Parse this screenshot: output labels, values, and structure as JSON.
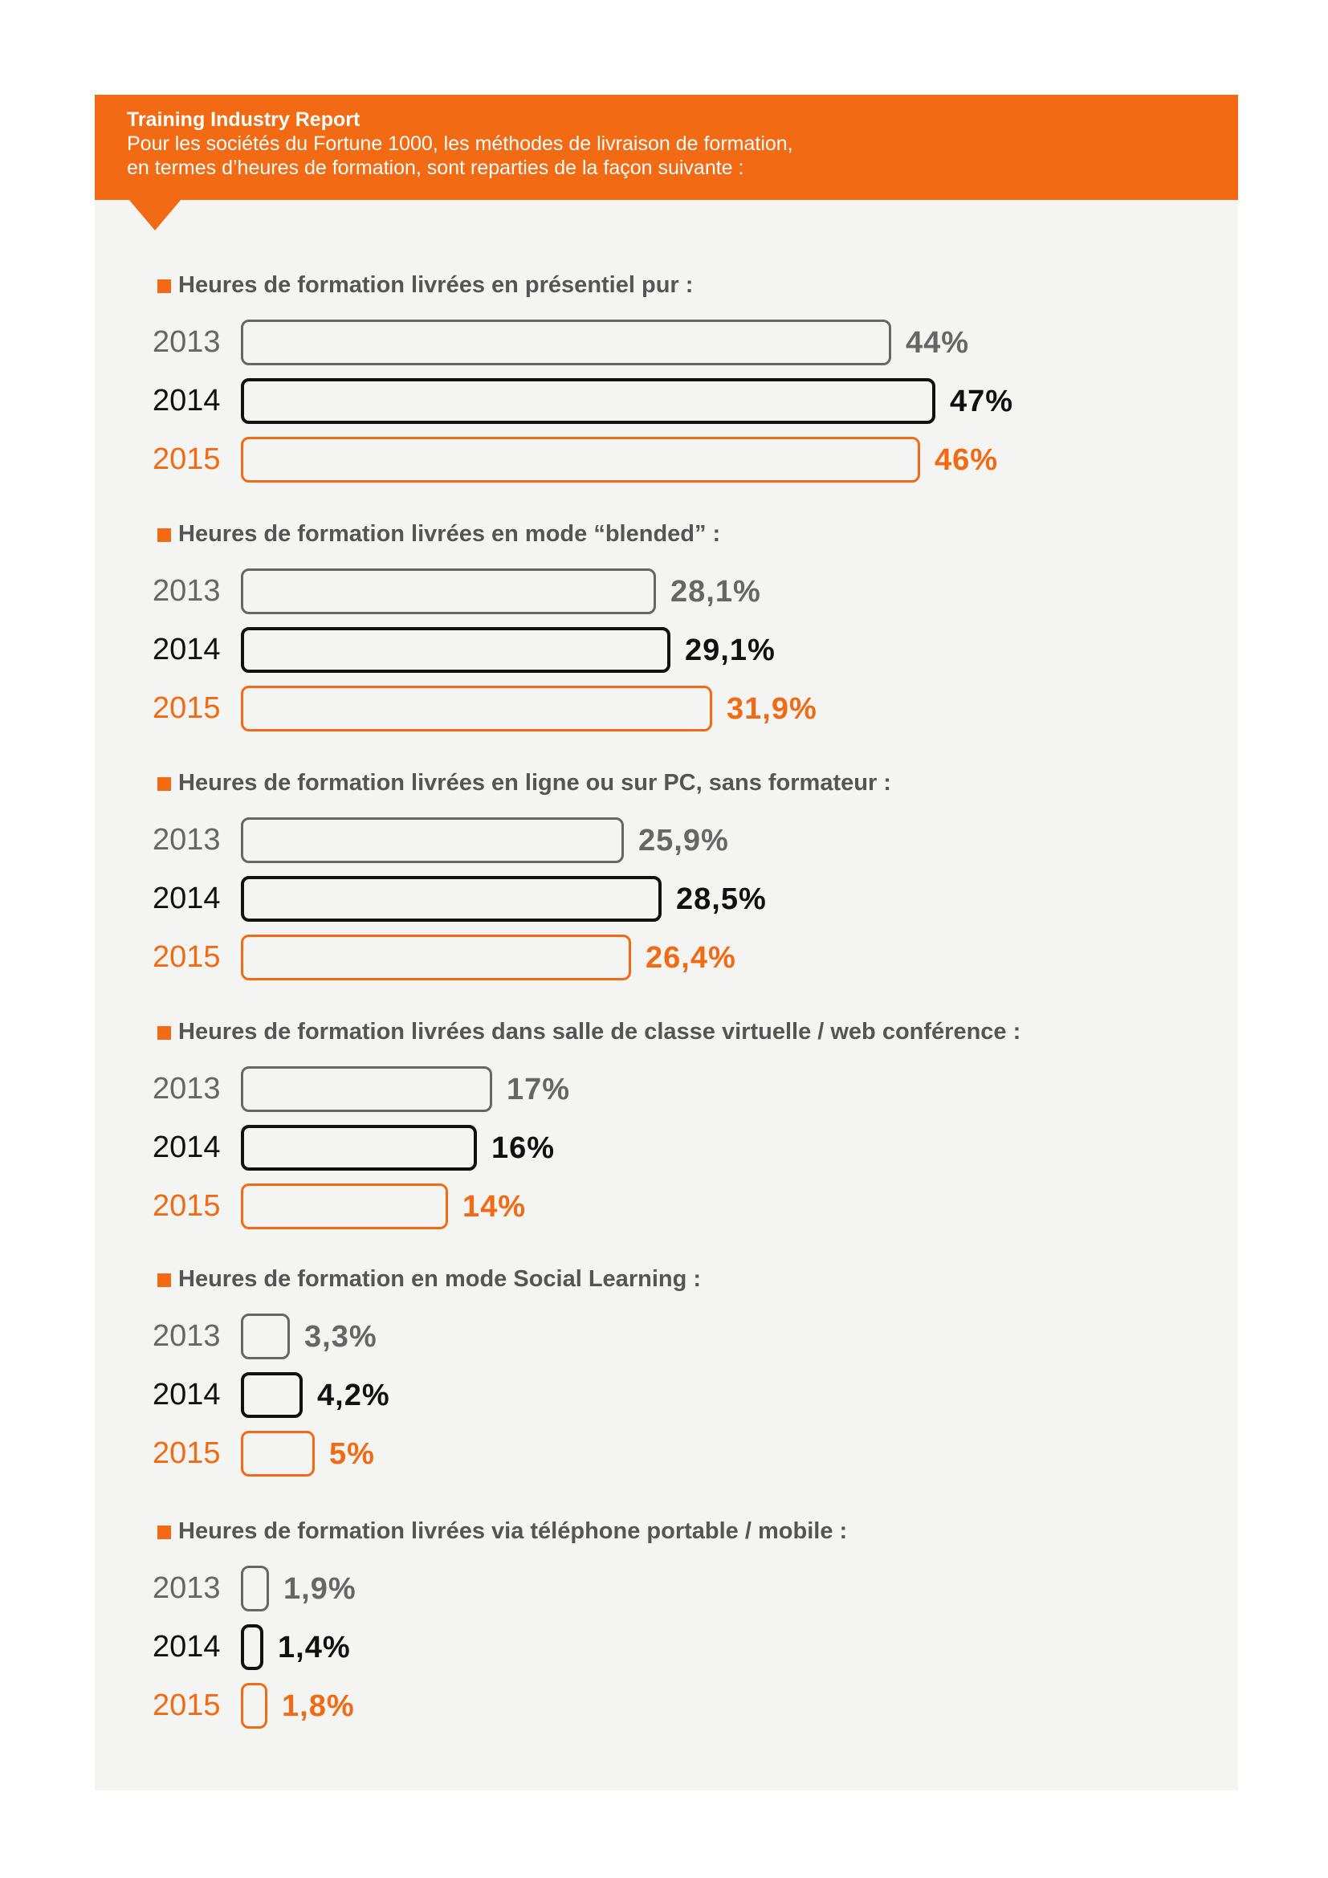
{
  "header": {
    "title": "Training Industry Report",
    "line1": "Pour les sociétés du Fortune 1000, les méthodes de livraison de formation,",
    "line2": "en termes d’heures de formation, sont reparties de la façon suivante :"
  },
  "colors": {
    "accent": "#f26a13",
    "year_2013": "#666666",
    "year_2014": "#111111",
    "year_2015": "#f26a13",
    "panel": "#f4f4f3"
  },
  "chart_data": {
    "type": "bar",
    "orientation": "horizontal",
    "unit": "%",
    "years": [
      "2013",
      "2014",
      "2015"
    ],
    "groups": [
      {
        "title": "Heures de formation livrées en présentiel pur :",
        "values": [
          44,
          47,
          46
        ],
        "labels": [
          "44%",
          "47%",
          "46%"
        ]
      },
      {
        "title": "Heures de formation livrées en mode “blended” :",
        "values": [
          28.1,
          29.1,
          31.9
        ],
        "labels": [
          "28,1%",
          "29,1%",
          "31,9%"
        ]
      },
      {
        "title": "Heures de formation livrées en ligne ou sur PC, sans formateur :",
        "values": [
          25.9,
          28.5,
          26.4
        ],
        "labels": [
          "25,9%",
          "28,5%",
          "26,4%"
        ]
      },
      {
        "title": "Heures de formation livrées dans salle de classe virtuelle / web conférence :",
        "values": [
          17,
          16,
          14
        ],
        "labels": [
          "17%",
          "16%",
          "14%"
        ]
      },
      {
        "title": "Heures de formation en mode Social Learning :",
        "values": [
          3.3,
          4.2,
          5
        ],
        "labels": [
          "3,3%",
          "4,2%",
          "5%"
        ]
      },
      {
        "title": "Heures de formation livrées via téléphone portable / mobile :",
        "values": [
          1.9,
          1.4,
          1.8
        ],
        "labels": [
          "1,9%",
          "1,4%",
          "1,8%"
        ]
      }
    ]
  }
}
